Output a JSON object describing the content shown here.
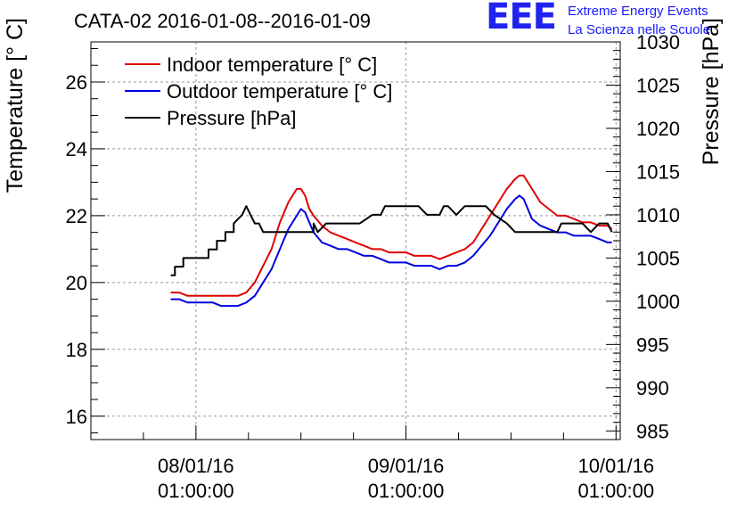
{
  "logo": {
    "mark": "EEE",
    "line1": "Extreme Energy Events",
    "line2": "La Scienza nelle Scuole"
  },
  "chart_data": {
    "type": "line",
    "title": "CATA-02 2016-01-08--2016-01-09",
    "ylabel": "Temperature [° C]",
    "y2label": "Pressure [hPa]",
    "ylim": [
      15.3,
      27.2
    ],
    "y2lim": [
      984,
      1030
    ],
    "xlim": [
      -0.5,
      2.02
    ],
    "yticks": [
      16,
      18,
      20,
      22,
      24,
      26
    ],
    "y2ticks": [
      985,
      990,
      995,
      1000,
      1005,
      1010,
      1015,
      1020,
      1025,
      1030
    ],
    "xticks": [
      {
        "x": 0,
        "line1": "08/01/16",
        "line2": "01:00:00"
      },
      {
        "x": 1,
        "line1": "09/01/16",
        "line2": "01:00:00"
      },
      {
        "x": 2,
        "line1": "10/01/16",
        "line2": "01:00:00"
      }
    ],
    "x_units": "days since 08/01/16 01:00:00",
    "grid": true,
    "legend_position": "top-left",
    "colors": {
      "indoor": "#e00000",
      "outdoor": "#0000e0",
      "pressure": "#000000"
    },
    "series": [
      {
        "name": "Indoor temperature [° C]",
        "axis": "left",
        "color": "#e00000",
        "x": [
          -0.12,
          -0.08,
          -0.04,
          0.0,
          0.08,
          0.16,
          0.2,
          0.24,
          0.28,
          0.32,
          0.36,
          0.4,
          0.44,
          0.48,
          0.5,
          0.52,
          0.54,
          0.56,
          0.6,
          0.64,
          0.68,
          0.72,
          0.76,
          0.8,
          0.84,
          0.88,
          0.92,
          0.96,
          1.0,
          1.04,
          1.08,
          1.12,
          1.16,
          1.2,
          1.24,
          1.28,
          1.32,
          1.36,
          1.4,
          1.44,
          1.48,
          1.52,
          1.54,
          1.56,
          1.58,
          1.6,
          1.64,
          1.68,
          1.72,
          1.76,
          1.8,
          1.84,
          1.88,
          1.92,
          1.96,
          1.98
        ],
        "y": [
          19.7,
          19.7,
          19.6,
          19.6,
          19.6,
          19.6,
          19.6,
          19.7,
          20.0,
          20.5,
          21.0,
          21.8,
          22.4,
          22.8,
          22.8,
          22.6,
          22.2,
          22.0,
          21.7,
          21.5,
          21.4,
          21.3,
          21.2,
          21.1,
          21.0,
          21.0,
          20.9,
          20.9,
          20.9,
          20.8,
          20.8,
          20.8,
          20.7,
          20.8,
          20.9,
          21.0,
          21.2,
          21.6,
          22.0,
          22.4,
          22.8,
          23.1,
          23.2,
          23.2,
          23.0,
          22.8,
          22.4,
          22.2,
          22.0,
          22.0,
          21.9,
          21.8,
          21.8,
          21.7,
          21.7,
          21.6
        ]
      },
      {
        "name": "Outdoor temperature [° C]",
        "axis": "left",
        "color": "#0000e0",
        "x": [
          -0.12,
          -0.08,
          -0.04,
          0.0,
          0.08,
          0.12,
          0.16,
          0.2,
          0.24,
          0.28,
          0.32,
          0.36,
          0.4,
          0.44,
          0.48,
          0.5,
          0.52,
          0.54,
          0.56,
          0.6,
          0.64,
          0.68,
          0.72,
          0.76,
          0.8,
          0.84,
          0.88,
          0.92,
          0.96,
          1.0,
          1.04,
          1.08,
          1.12,
          1.16,
          1.2,
          1.24,
          1.28,
          1.32,
          1.36,
          1.4,
          1.44,
          1.48,
          1.52,
          1.54,
          1.56,
          1.58,
          1.6,
          1.64,
          1.68,
          1.72,
          1.76,
          1.8,
          1.84,
          1.88,
          1.92,
          1.96,
          1.98
        ],
        "y": [
          19.5,
          19.5,
          19.4,
          19.4,
          19.4,
          19.3,
          19.3,
          19.3,
          19.4,
          19.6,
          20.0,
          20.4,
          21.0,
          21.6,
          22.0,
          22.2,
          22.1,
          21.8,
          21.5,
          21.2,
          21.1,
          21.0,
          21.0,
          20.9,
          20.8,
          20.8,
          20.7,
          20.6,
          20.6,
          20.6,
          20.5,
          20.5,
          20.5,
          20.4,
          20.5,
          20.5,
          20.6,
          20.8,
          21.1,
          21.4,
          21.8,
          22.2,
          22.5,
          22.6,
          22.5,
          22.2,
          21.9,
          21.7,
          21.6,
          21.5,
          21.5,
          21.4,
          21.4,
          21.4,
          21.3,
          21.2,
          21.2
        ]
      },
      {
        "name": "Pressure [hPa]",
        "axis": "right",
        "color": "#000000",
        "x": [
          -0.12,
          -0.1,
          -0.1,
          -0.06,
          -0.06,
          0.06,
          0.06,
          0.1,
          0.1,
          0.14,
          0.14,
          0.18,
          0.18,
          0.22,
          0.24,
          0.26,
          0.28,
          0.3,
          0.32,
          0.34,
          0.4,
          0.56,
          0.56,
          0.58,
          0.62,
          0.66,
          0.7,
          0.74,
          0.78,
          0.84,
          0.88,
          0.9,
          0.92,
          0.96,
          1.0,
          1.04,
          1.06,
          1.1,
          1.14,
          1.16,
          1.18,
          1.2,
          1.24,
          1.28,
          1.32,
          1.38,
          1.42,
          1.48,
          1.52,
          1.6,
          1.64,
          1.68,
          1.72,
          1.74,
          1.76,
          1.8,
          1.84,
          1.88,
          1.92,
          1.96,
          1.98
        ],
        "y": [
          1003,
          1003,
          1004,
          1004,
          1005,
          1005,
          1006,
          1006,
          1007,
          1007,
          1008,
          1008,
          1009,
          1010,
          1011,
          1010,
          1009,
          1009,
          1008,
          1008,
          1008,
          1008,
          1009,
          1008,
          1009,
          1009,
          1009,
          1009,
          1009,
          1010,
          1010,
          1011,
          1011,
          1011,
          1011,
          1011,
          1011,
          1010,
          1010,
          1010,
          1011,
          1011,
          1010,
          1011,
          1011,
          1011,
          1010,
          1009,
          1008,
          1008,
          1008,
          1008,
          1008,
          1009,
          1009,
          1009,
          1009,
          1008,
          1009,
          1009,
          1008
        ]
      }
    ]
  }
}
